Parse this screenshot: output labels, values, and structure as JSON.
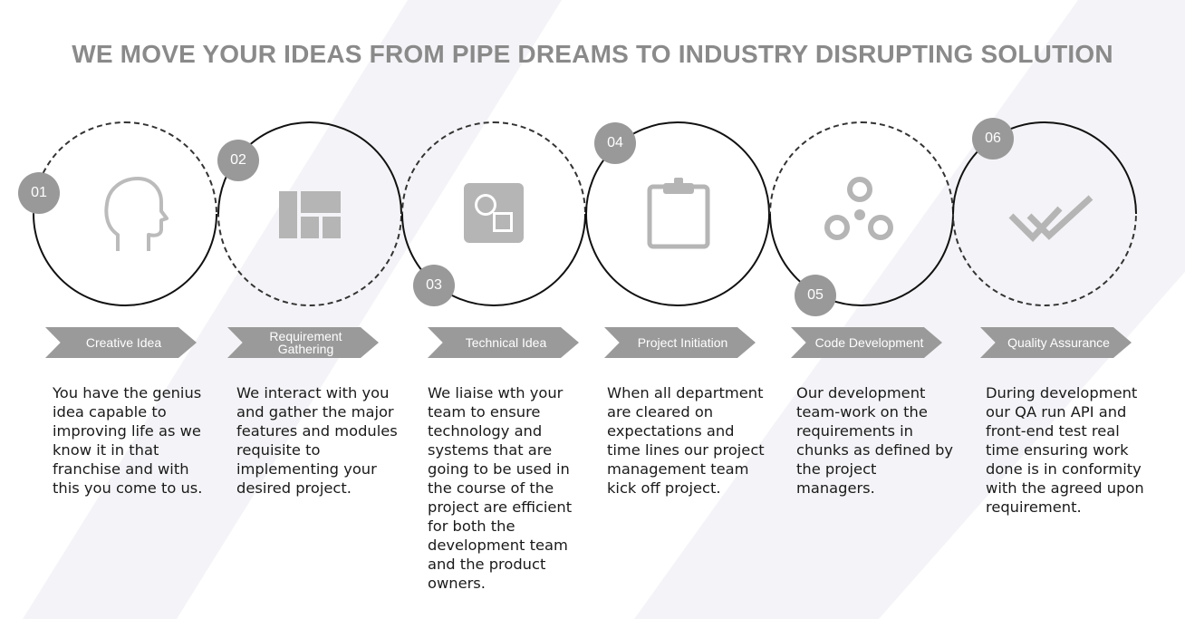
{
  "title": "WE MOVE YOUR IDEAS FROM PIPE DREAMS TO INDUSTRY DISRUPTING SOLUTION",
  "colors": {
    "accent_gray": "#999999",
    "title_gray": "#8a8a8a",
    "stripe": "#f3f3f8"
  },
  "steps": [
    {
      "number": "01",
      "label": "Creative Idea",
      "icon": "head-icon",
      "description": "You have the genius idea capable to improving life as we know it in that franchise and with this you come to us."
    },
    {
      "number": "02",
      "label": "Requirement Gathering",
      "icon": "layout-grid-icon",
      "description": "We interact with you and gather the major features and modules requisite to implementing your desired project."
    },
    {
      "number": "03",
      "label": "Technical Idea",
      "icon": "shapes-icon",
      "description": "We liaise wth your team to ensure technology and systems that are going to be used in the course of the project are efficient for both the development team and the product owners."
    },
    {
      "number": "04",
      "label": "Project Initiation",
      "icon": "clipboard-icon",
      "description": "When all department are cleared on expectations and time lines our project management team kick off project."
    },
    {
      "number": "05",
      "label": "Code Development",
      "icon": "circles-icon",
      "description": "Our development team-work on the requirements in chunks as defined by the project managers."
    },
    {
      "number": "06",
      "label": "Quality Assurance",
      "icon": "double-check-icon",
      "description": "During development our QA run API and front-end test real time ensuring work done is in conformity with the agreed upon requirement."
    }
  ]
}
